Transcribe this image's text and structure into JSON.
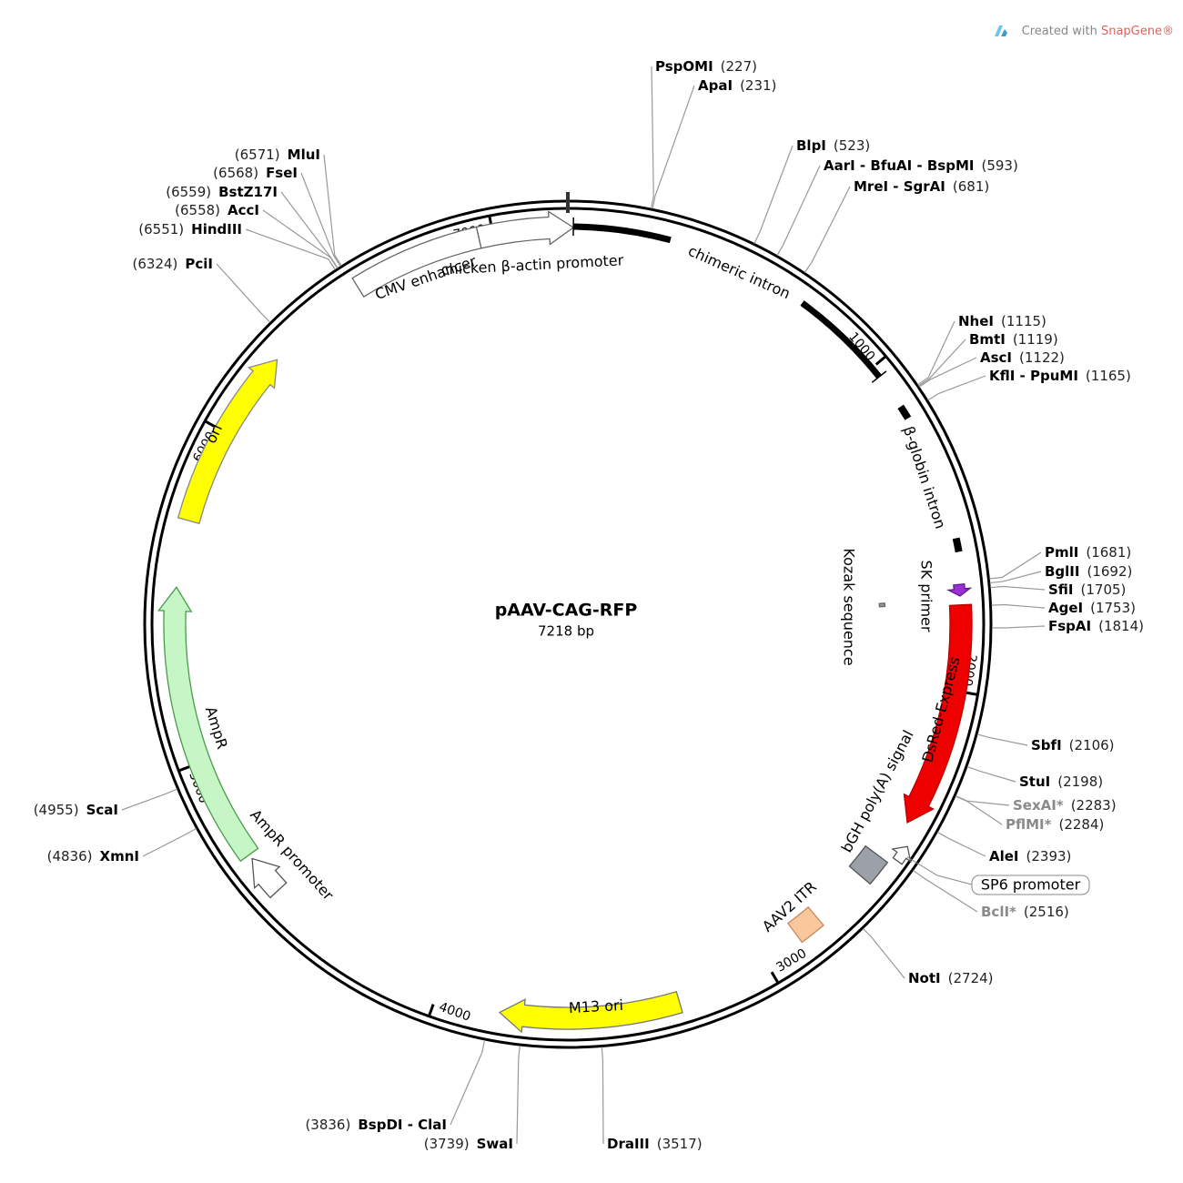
{
  "branding": {
    "prefix": "Created with",
    "brand": "SnapGene®"
  },
  "plasmid": {
    "name": "pAAV-CAG-RFP",
    "length": {
      "value": 7218,
      "label": "7218 bp"
    }
  },
  "ticks": [
    1000,
    2000,
    3000,
    4000,
    5000,
    6000,
    7000
  ],
  "features": [
    {
      "label": "CMV enhancer",
      "color": "#ffffff"
    },
    {
      "label": "chicken β-actin promoter",
      "color": "#ffffff"
    },
    {
      "label": "chimeric intron",
      "color": "#000000"
    },
    {
      "label": "β-globin intron",
      "color": "#000000"
    },
    {
      "label": "SK primer",
      "color": "#9b30d9"
    },
    {
      "label": "Kozak sequence",
      "color": "#999999"
    },
    {
      "label": "DsRed-Express",
      "color": "#ee0000"
    },
    {
      "label": "bGH poly(A) signal",
      "color": "#9ca0a8"
    },
    {
      "label": "SP6 promoter",
      "color": "#ffffff"
    },
    {
      "label": "AAV2 ITR",
      "color": "#f9c79c"
    },
    {
      "label": "M13 ori",
      "color": "#ffff00"
    },
    {
      "label": "AmpR promoter",
      "color": "#ffffff"
    },
    {
      "label": "AmpR",
      "color": "#c6f5c6"
    },
    {
      "label": "ori",
      "color": "#ffff00"
    }
  ],
  "enzymes": [
    {
      "name": "PspOMI",
      "position": {
        "value": 227,
        "label": "(227)"
      }
    },
    {
      "name": "ApaI",
      "position": {
        "value": 231,
        "label": "(231)"
      }
    },
    {
      "name": "BlpI",
      "position": {
        "value": 523,
        "label": "(523)"
      }
    },
    {
      "name": "AarI - BfuAI - BspMI",
      "position": {
        "value": 593,
        "label": "(593)"
      }
    },
    {
      "name": "MreI - SgrAI",
      "position": {
        "value": 681,
        "label": "(681)"
      }
    },
    {
      "name": "NheI",
      "position": {
        "value": 1115,
        "label": "(1115)"
      }
    },
    {
      "name": "BmtI",
      "position": {
        "value": 1119,
        "label": "(1119)"
      }
    },
    {
      "name": "AscI",
      "position": {
        "value": 1122,
        "label": "(1122)"
      }
    },
    {
      "name": "KflI - PpuMI",
      "position": {
        "value": 1165,
        "label": "(1165)"
      }
    },
    {
      "name": "PmlI",
      "position": {
        "value": 1681,
        "label": "(1681)"
      }
    },
    {
      "name": "BglII",
      "position": {
        "value": 1692,
        "label": "(1692)"
      }
    },
    {
      "name": "SfiI",
      "position": {
        "value": 1705,
        "label": "(1705)"
      }
    },
    {
      "name": "AgeI",
      "position": {
        "value": 1753,
        "label": "(1753)"
      }
    },
    {
      "name": "FspAI",
      "position": {
        "value": 1814,
        "label": "(1814)"
      }
    },
    {
      "name": "SbfI",
      "position": {
        "value": 2106,
        "label": "(2106)"
      }
    },
    {
      "name": "StuI",
      "position": {
        "value": 2198,
        "label": "(2198)"
      }
    },
    {
      "name": "SexAI*",
      "position": {
        "value": 2283,
        "label": "(2283)"
      },
      "color": "#8a8a8a"
    },
    {
      "name": "PflMI*",
      "position": {
        "value": 2284,
        "label": "(2284)"
      },
      "color": "#8a8a8a"
    },
    {
      "name": "AleI",
      "position": {
        "value": 2393,
        "label": "(2393)"
      }
    },
    {
      "name": "BclI*",
      "position": {
        "value": 2516,
        "label": "(2516)"
      },
      "color": "#8a8a8a"
    },
    {
      "name": "NotI",
      "position": {
        "value": 2724,
        "label": "(2724)"
      }
    },
    {
      "name": "DraIII",
      "position": {
        "value": 3517,
        "label": "(3517)"
      }
    },
    {
      "name": "SwaI",
      "position": {
        "value": 3739,
        "label": "(3739)"
      }
    },
    {
      "name": "BspDI - ClaI",
      "position": {
        "value": 3836,
        "label": "(3836)"
      }
    },
    {
      "name": "XmnI",
      "position": {
        "value": 4836,
        "label": "(4836)"
      }
    },
    {
      "name": "ScaI",
      "position": {
        "value": 4955,
        "label": "(4955)"
      }
    },
    {
      "name": "PciI",
      "position": {
        "value": 6324,
        "label": "(6324)"
      }
    },
    {
      "name": "HindIII",
      "position": {
        "value": 6551,
        "label": "(6551)"
      }
    },
    {
      "name": "AccI",
      "position": {
        "value": 6558,
        "label": "(6558)"
      }
    },
    {
      "name": "BstZ17I",
      "position": {
        "value": 6559,
        "label": "(6559)"
      }
    },
    {
      "name": "FseI",
      "position": {
        "value": 6568,
        "label": "(6568)"
      }
    },
    {
      "name": "MluI",
      "position": {
        "value": 6571,
        "label": "(6571)"
      }
    }
  ]
}
